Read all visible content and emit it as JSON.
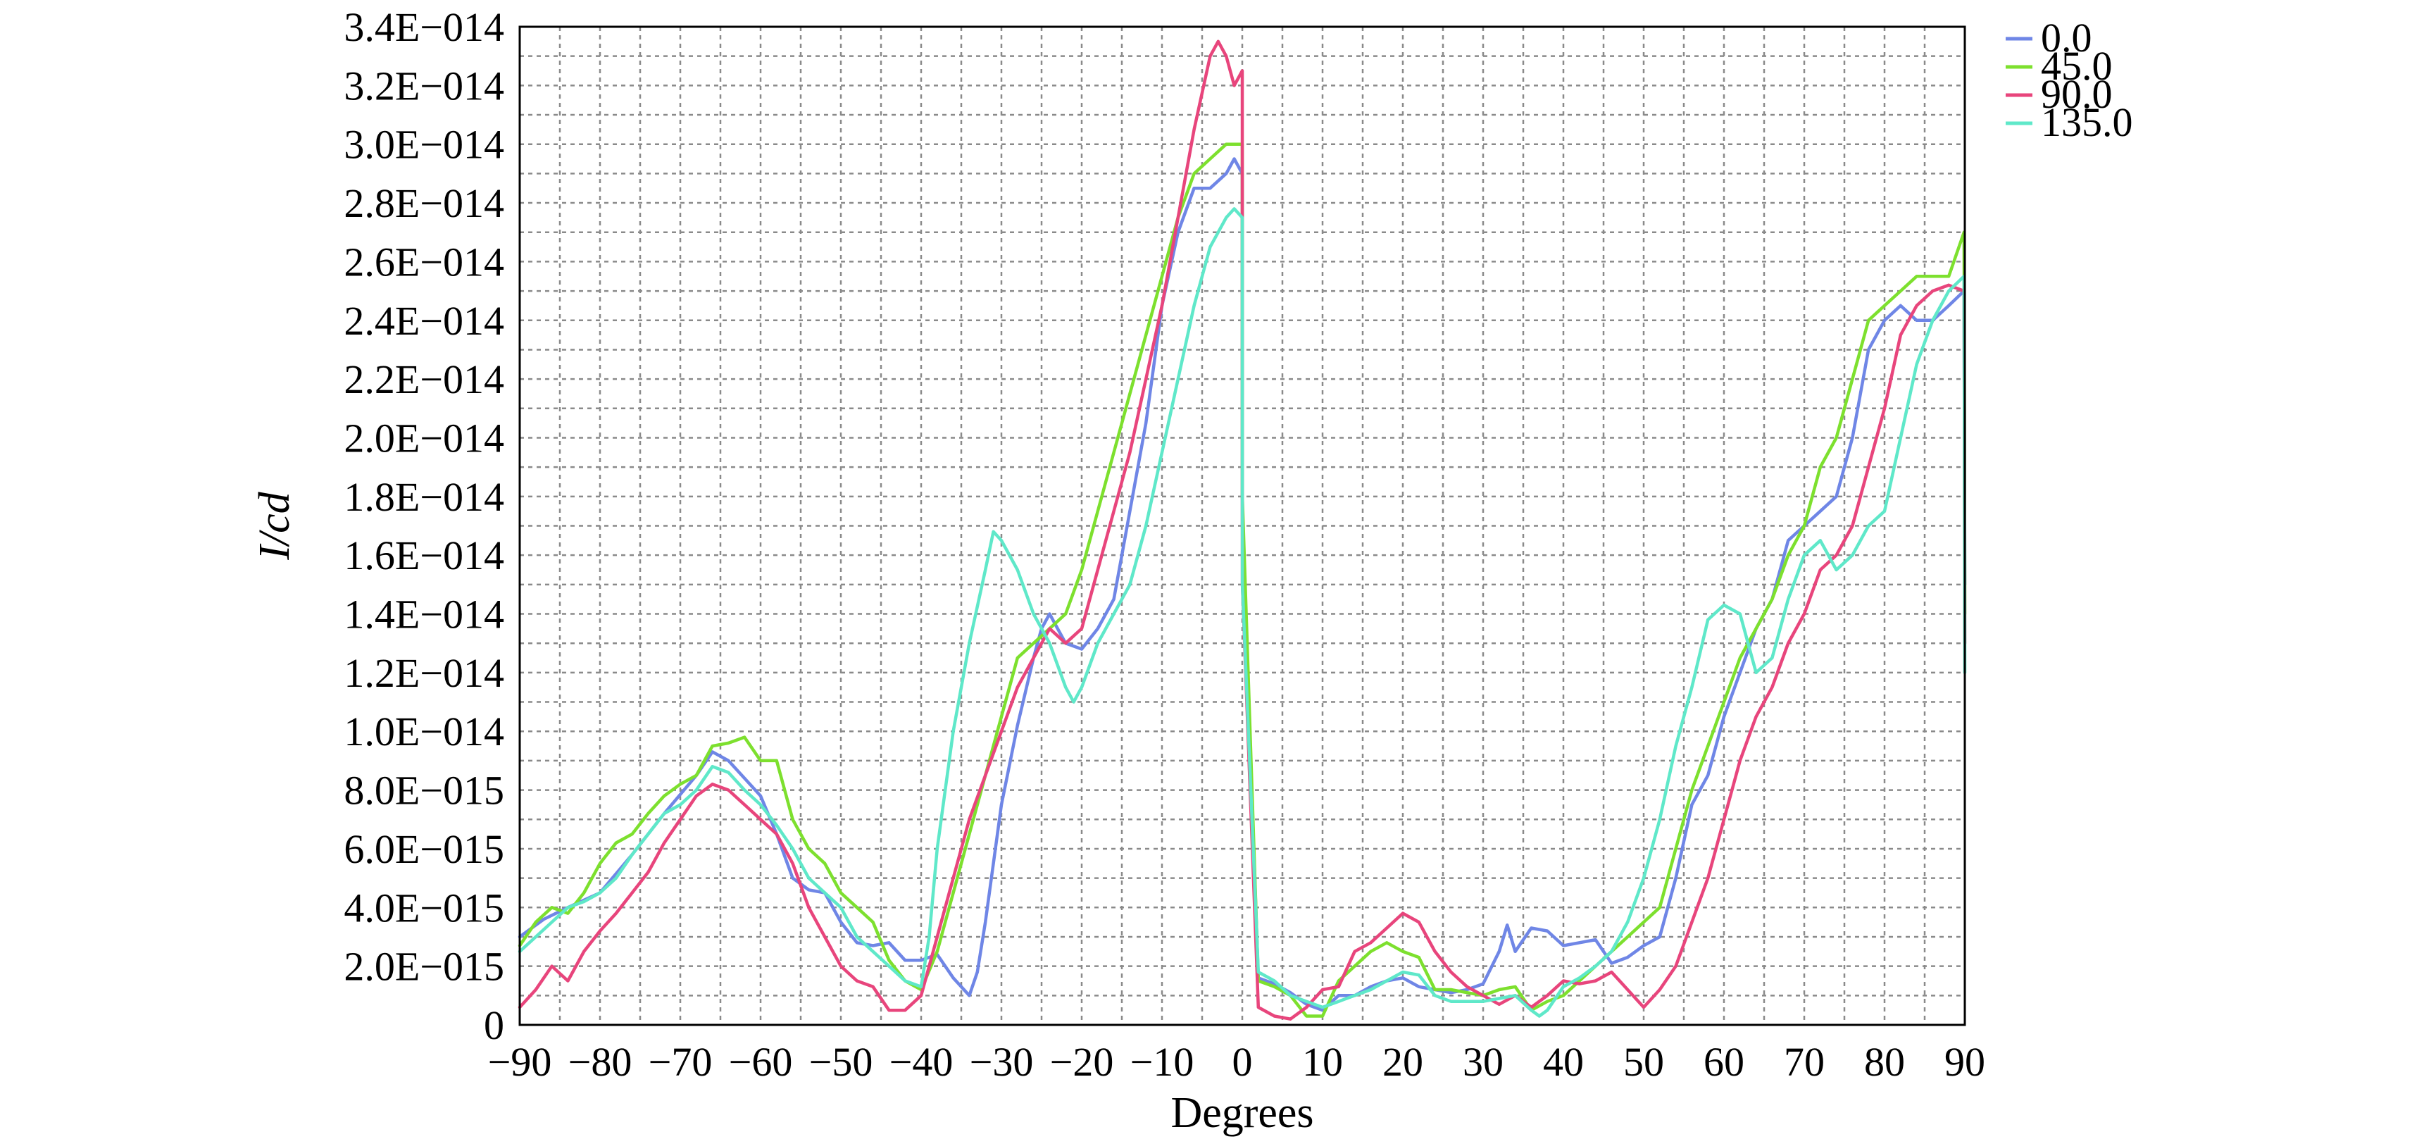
{
  "chart_data": {
    "type": "line",
    "xlabel": "Degrees",
    "ylabel": "I/cd",
    "xlim": [
      -90,
      90
    ],
    "ylim": [
      0,
      3.4e-14
    ],
    "x_ticks": [
      -90,
      -80,
      -70,
      -60,
      -50,
      -40,
      -30,
      -20,
      -10,
      0,
      10,
      20,
      30,
      40,
      50,
      60,
      70,
      80,
      90
    ],
    "x_tick_labels": [
      "−90",
      "−80",
      "−70",
      "−60",
      "−50",
      "−40",
      "−30",
      "−20",
      "−10",
      "0",
      "10",
      "20",
      "30",
      "40",
      "50",
      "60",
      "70",
      "80",
      "90"
    ],
    "y_ticks": [
      0,
      2e-15,
      4e-15,
      6e-15,
      8e-15,
      1e-14,
      1.2e-14,
      1.4e-14,
      1.6e-14,
      1.8e-14,
      2e-14,
      2.2e-14,
      2.4e-14,
      2.6e-14,
      2.8e-14,
      3e-14,
      3.2e-14,
      3.4e-14
    ],
    "y_tick_labels": [
      "0",
      "2.0E−015",
      "4.0E−015",
      "6.0E−015",
      "8.0E−015",
      "1.0E−014",
      "1.2E−014",
      "1.4E−014",
      "1.6E−014",
      "1.8E−014",
      "2.0E−014",
      "2.2E−014",
      "2.4E−014",
      "2.6E−014",
      "2.8E−014",
      "3.0E−014",
      "3.2E−014",
      "3.4E−014"
    ],
    "grid": true,
    "legend_position": "top-right",
    "series": [
      {
        "name": "0.0",
        "color": "#6f86e6",
        "x": [
          -90,
          -87,
          -84,
          -80,
          -76,
          -72,
          -68,
          -66,
          -64,
          -62,
          -60,
          -58,
          -56,
          -54,
          -52,
          -50,
          -48,
          -46,
          -44,
          -42,
          -40,
          -38,
          -36,
          -34,
          -33,
          -32,
          -31,
          -30,
          -28,
          -26,
          -25,
          -24,
          -23,
          -22,
          -20,
          -18,
          -16,
          -14,
          -12,
          -10,
          -8,
          -6,
          -4,
          -2,
          -1,
          0,
          0.01,
          2,
          4,
          6,
          8,
          10,
          12,
          14,
          16,
          18,
          20,
          22,
          24,
          26,
          28,
          30,
          32,
          33,
          34,
          36,
          38,
          40,
          42,
          44,
          46,
          48,
          50,
          52,
          54,
          56,
          58,
          60,
          62,
          64,
          66,
          68,
          70,
          72,
          74,
          76,
          78,
          80,
          82,
          84,
          86,
          88,
          89.9,
          90
        ],
        "y": [
          3e-15,
          3.6e-15,
          4e-15,
          4.5e-15,
          5.8e-15,
          7.2e-15,
          8.5e-15,
          9.3e-15,
          9e-15,
          8.4e-15,
          7.8e-15,
          6.5e-15,
          5e-15,
          4.6e-15,
          4.5e-15,
          3.5e-15,
          2.8e-15,
          2.7e-15,
          2.8e-15,
          2.2e-15,
          2.2e-15,
          2.4e-15,
          1.6e-15,
          1e-15,
          1.8e-15,
          3.5e-15,
          5.5e-15,
          7.5e-15,
          1.02e-14,
          1.25e-14,
          1.35e-14,
          1.4e-14,
          1.35e-14,
          1.3e-14,
          1.28e-14,
          1.35e-14,
          1.45e-14,
          1.75e-14,
          2.05e-14,
          2.45e-14,
          2.7e-14,
          2.85e-14,
          2.85e-14,
          2.9e-14,
          2.95e-14,
          2.9e-14,
          1.7e-14,
          1.6e-15,
          1.4e-15,
          1.1e-15,
          7e-16,
          5e-16,
          1e-15,
          1e-15,
          1.3e-15,
          1.5e-15,
          1.6e-15,
          1.3e-15,
          1.2e-15,
          1.1e-15,
          1.2e-15,
          1.4e-15,
          2.5e-15,
          3.4e-15,
          2.5e-15,
          3.3e-15,
          3.2e-15,
          2.7e-15,
          2.8e-15,
          2.9e-15,
          2.1e-15,
          2.3e-15,
          2.7e-15,
          3e-15,
          5e-15,
          7.5e-15,
          8.5e-15,
          1.05e-14,
          1.2e-14,
          1.35e-14,
          1.45e-14,
          1.65e-14,
          1.7e-14,
          1.75e-14,
          1.8e-14,
          2e-14,
          2.3e-14,
          2.4e-14,
          2.45e-14,
          2.4e-14,
          2.4e-14,
          2.45e-14,
          2.5e-14,
          1.5e-14
        ]
      },
      {
        "name": "45.0",
        "color": "#7de02e",
        "x": [
          -90,
          -88,
          -86,
          -84,
          -82,
          -80,
          -78,
          -76,
          -74,
          -72,
          -70,
          -68,
          -66,
          -64,
          -62,
          -60,
          -58,
          -56,
          -54,
          -52,
          -50,
          -48,
          -46,
          -44,
          -42,
          -40,
          -38,
          -36,
          -34,
          -32,
          -30,
          -28,
          -26,
          -24,
          -22,
          -20,
          -18,
          -16,
          -14,
          -12,
          -10,
          -8,
          -6,
          -4,
          -2,
          -1,
          0,
          0.01,
          2,
          4,
          6,
          8,
          10,
          12,
          14,
          16,
          18,
          20,
          22,
          24,
          26,
          28,
          30,
          32,
          34,
          36,
          38,
          40,
          42,
          44,
          46,
          48,
          50,
          52,
          54,
          56,
          58,
          60,
          62,
          64,
          66,
          68,
          70,
          72,
          74,
          76,
          78,
          80,
          82,
          84,
          86,
          88,
          89.9,
          90
        ],
        "y": [
          2.7e-15,
          3.5e-15,
          4e-15,
          3.8e-15,
          4.5e-15,
          5.5e-15,
          6.2e-15,
          6.5e-15,
          7.2e-15,
          7.8e-15,
          8.2e-15,
          8.5e-15,
          9.5e-15,
          9.6e-15,
          9.8e-15,
          9e-15,
          9e-15,
          7e-15,
          6e-15,
          5.5e-15,
          4.5e-15,
          4e-15,
          3.5e-15,
          2.2e-15,
          1.5e-15,
          1.2e-15,
          2.5e-15,
          4.5e-15,
          6.5e-15,
          8.5e-15,
          1.05e-14,
          1.25e-14,
          1.3e-14,
          1.35e-14,
          1.4e-14,
          1.55e-14,
          1.75e-14,
          1.95e-14,
          2.15e-14,
          2.35e-14,
          2.55e-14,
          2.75e-14,
          2.9e-14,
          2.95e-14,
          3e-14,
          3e-14,
          3e-14,
          1.8e-14,
          1.5e-15,
          1.3e-15,
          1e-15,
          3e-16,
          3e-16,
          1.5e-15,
          2e-15,
          2.5e-15,
          2.8e-15,
          2.5e-15,
          2.3e-15,
          1.2e-15,
          1.2e-15,
          1.1e-15,
          1e-15,
          1.2e-15,
          1.3e-15,
          5e-16,
          8e-16,
          1e-15,
          1.5e-15,
          2e-15,
          2.5e-15,
          3e-15,
          3.5e-15,
          4e-15,
          6e-15,
          8e-15,
          9.5e-15,
          1.1e-14,
          1.25e-14,
          1.35e-14,
          1.45e-14,
          1.6e-14,
          1.7e-14,
          1.9e-14,
          2e-14,
          2.2e-14,
          2.4e-14,
          2.45e-14,
          2.5e-14,
          2.55e-14,
          2.55e-14,
          2.55e-14,
          2.7e-14,
          1.4e-14
        ]
      },
      {
        "name": "90.0",
        "color": "#e8457c",
        "x": [
          -90,
          -88,
          -86,
          -84,
          -82,
          -80,
          -78,
          -76,
          -74,
          -72,
          -70,
          -68,
          -66,
          -64,
          -62,
          -60,
          -58,
          -56,
          -54,
          -52,
          -50,
          -48,
          -46,
          -44,
          -42,
          -40,
          -38,
          -36,
          -34,
          -32,
          -30,
          -28,
          -26,
          -24,
          -22,
          -20,
          -18,
          -16,
          -14,
          -12,
          -10,
          -8,
          -6,
          -4,
          -3,
          -2,
          -1,
          0,
          0.01,
          2,
          4,
          6,
          8,
          10,
          12,
          14,
          16,
          18,
          20,
          22,
          24,
          26,
          28,
          30,
          32,
          34,
          36,
          38,
          40,
          42,
          44,
          46,
          48,
          50,
          52,
          54,
          56,
          58,
          60,
          62,
          64,
          66,
          68,
          70,
          72,
          74,
          76,
          78,
          80,
          82,
          84,
          86,
          88,
          89.9,
          90
        ],
        "y": [
          6e-16,
          1.2e-15,
          2e-15,
          1.5e-15,
          2.5e-15,
          3.2e-15,
          3.8e-15,
          4.5e-15,
          5.2e-15,
          6.2e-15,
          7e-15,
          7.8e-15,
          8.2e-15,
          8e-15,
          7.5e-15,
          7e-15,
          6.5e-15,
          5.5e-15,
          4e-15,
          3e-15,
          2e-15,
          1.5e-15,
          1.3e-15,
          5e-16,
          5e-16,
          1e-15,
          3e-15,
          5e-15,
          7e-15,
          8.5e-15,
          1e-14,
          1.15e-14,
          1.25e-14,
          1.35e-14,
          1.3e-14,
          1.35e-14,
          1.55e-14,
          1.75e-14,
          1.95e-14,
          2.2e-14,
          2.45e-14,
          2.75e-14,
          3.05e-14,
          3.3e-14,
          3.35e-14,
          3.3e-14,
          3.2e-14,
          3.25e-14,
          1.5e-14,
          6e-16,
          3e-16,
          2e-16,
          6e-16,
          1.2e-15,
          1.3e-15,
          2.5e-15,
          2.8e-15,
          3.3e-15,
          3.8e-15,
          3.5e-15,
          2.5e-15,
          1.8e-15,
          1.3e-15,
          1e-15,
          7e-16,
          1e-15,
          6e-16,
          1e-15,
          1.5e-15,
          1.4e-15,
          1.5e-15,
          1.8e-15,
          1.2e-15,
          6e-16,
          1.2e-15,
          2e-15,
          3.5e-15,
          5e-15,
          7e-15,
          9e-15,
          1.05e-14,
          1.15e-14,
          1.3e-14,
          1.4e-14,
          1.55e-14,
          1.6e-14,
          1.7e-14,
          1.9e-14,
          2.1e-14,
          2.35e-14,
          2.45e-14,
          2.5e-14,
          2.52e-14,
          2.5e-14,
          1.3e-14
        ]
      },
      {
        "name": "135.0",
        "color": "#5fe8c9",
        "x": [
          -90,
          -88,
          -86,
          -84,
          -82,
          -80,
          -78,
          -76,
          -74,
          -72,
          -70,
          -68,
          -66,
          -64,
          -62,
          -60,
          -58,
          -56,
          -54,
          -52,
          -50,
          -48,
          -46,
          -44,
          -42,
          -40,
          -39,
          -38,
          -36,
          -34,
          -32,
          -31,
          -30,
          -28,
          -26,
          -24,
          -22,
          -21,
          -20,
          -18,
          -16,
          -14,
          -12,
          -10,
          -8,
          -6,
          -4,
          -2,
          -1,
          0,
          0.01,
          2,
          4,
          6,
          8,
          10,
          12,
          14,
          16,
          18,
          20,
          22,
          24,
          26,
          28,
          30,
          32,
          34,
          36,
          37,
          38,
          40,
          42,
          44,
          46,
          48,
          50,
          52,
          54,
          56,
          58,
          60,
          62,
          64,
          66,
          68,
          70,
          72,
          74,
          76,
          78,
          80,
          82,
          84,
          86,
          88,
          89.9,
          90
        ],
        "y": [
          2.5e-15,
          3e-15,
          3.5e-15,
          4e-15,
          4.2e-15,
          4.5e-15,
          5e-15,
          5.8e-15,
          6.5e-15,
          7.2e-15,
          7.5e-15,
          8e-15,
          8.8e-15,
          8.6e-15,
          8e-15,
          7.5e-15,
          6.8e-15,
          6e-15,
          5e-15,
          4.5e-15,
          4e-15,
          3e-15,
          2.5e-15,
          2e-15,
          1.5e-15,
          1.3e-15,
          3e-15,
          6e-15,
          1e-14,
          1.3e-14,
          1.55e-14,
          1.68e-14,
          1.65e-14,
          1.55e-14,
          1.4e-14,
          1.3e-14,
          1.15e-14,
          1.1e-14,
          1.15e-14,
          1.3e-14,
          1.4e-14,
          1.5e-14,
          1.7e-14,
          1.95e-14,
          2.2e-14,
          2.45e-14,
          2.65e-14,
          2.75e-14,
          2.78e-14,
          2.75e-14,
          1.5e-14,
          1.8e-15,
          1.5e-15,
          1e-15,
          8e-16,
          6e-16,
          8e-16,
          1e-15,
          1.2e-15,
          1.5e-15,
          1.8e-15,
          1.7e-15,
          1e-15,
          8e-16,
          8e-16,
          8e-16,
          9e-16,
          1e-15,
          5e-16,
          3e-16,
          5e-16,
          1.3e-15,
          1.6e-15,
          2e-15,
          2.5e-15,
          3.5e-15,
          5e-15,
          7e-15,
          9.5e-15,
          1.15e-14,
          1.38e-14,
          1.43e-14,
          1.4e-14,
          1.2e-14,
          1.25e-14,
          1.45e-14,
          1.6e-14,
          1.65e-14,
          1.55e-14,
          1.6e-14,
          1.7e-14,
          1.75e-14,
          2e-14,
          2.25e-14,
          2.4e-14,
          2.5e-14,
          2.55e-14,
          1.2e-14
        ]
      }
    ]
  }
}
